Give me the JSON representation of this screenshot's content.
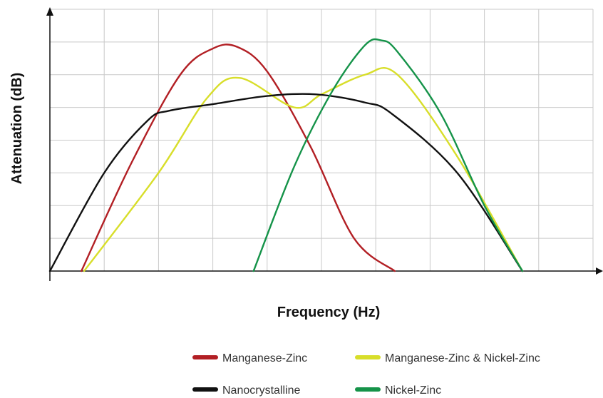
{
  "chart_data": {
    "type": "line",
    "title": "",
    "xlabel": "Frequency (Hz)",
    "ylabel": "Attenuation (dB)",
    "xlim": [
      0,
      10
    ],
    "ylim": [
      0,
      8
    ],
    "grid": true,
    "legend_position": "bottom",
    "series": [
      {
        "name": "Manganese-Zinc",
        "color": "#b21f24",
        "x": [
          0.58,
          1.5,
          2.4,
          3.0,
          3.45,
          4.0,
          4.8,
          5.6,
          6.35
        ],
        "y": [
          0,
          3.3,
          6.0,
          6.8,
          6.85,
          6.1,
          3.8,
          1.0,
          0
        ]
      },
      {
        "name": "Manganese-Zinc & Nickel-Zinc",
        "color": "#d8de2a",
        "x": [
          0.63,
          2.0,
          2.9,
          3.5,
          4.5,
          5.0,
          5.8,
          6.4,
          7.5,
          8.7
        ],
        "y": [
          0,
          3.0,
          5.3,
          5.9,
          5.0,
          5.4,
          6.0,
          6.0,
          3.5,
          0
        ]
      },
      {
        "name": "Nanocrystalline",
        "color": "#111111",
        "x": [
          0,
          1.0,
          1.8,
          2.2,
          3.0,
          4.0,
          4.9,
          5.8,
          6.3,
          7.5,
          8.7
        ],
        "y": [
          0,
          3.0,
          4.6,
          4.9,
          5.1,
          5.35,
          5.4,
          5.15,
          4.8,
          3.0,
          0
        ]
      },
      {
        "name": "Nickel-Zinc",
        "color": "#159349",
        "x": [
          3.75,
          4.5,
          5.2,
          5.8,
          6.1,
          6.4,
          7.2,
          8.0,
          8.7
        ],
        "y": [
          0,
          3.2,
          5.5,
          6.9,
          7.05,
          6.7,
          4.8,
          2.0,
          0
        ]
      }
    ]
  },
  "legend": [
    {
      "label": "Manganese-Zinc",
      "color": "#b21f24"
    },
    {
      "label": "Manganese-Zinc & Nickel-Zinc",
      "color": "#d8de2a"
    },
    {
      "label": "Nanocrystalline",
      "color": "#111111"
    },
    {
      "label": "Nickel-Zinc",
      "color": "#159349"
    }
  ]
}
